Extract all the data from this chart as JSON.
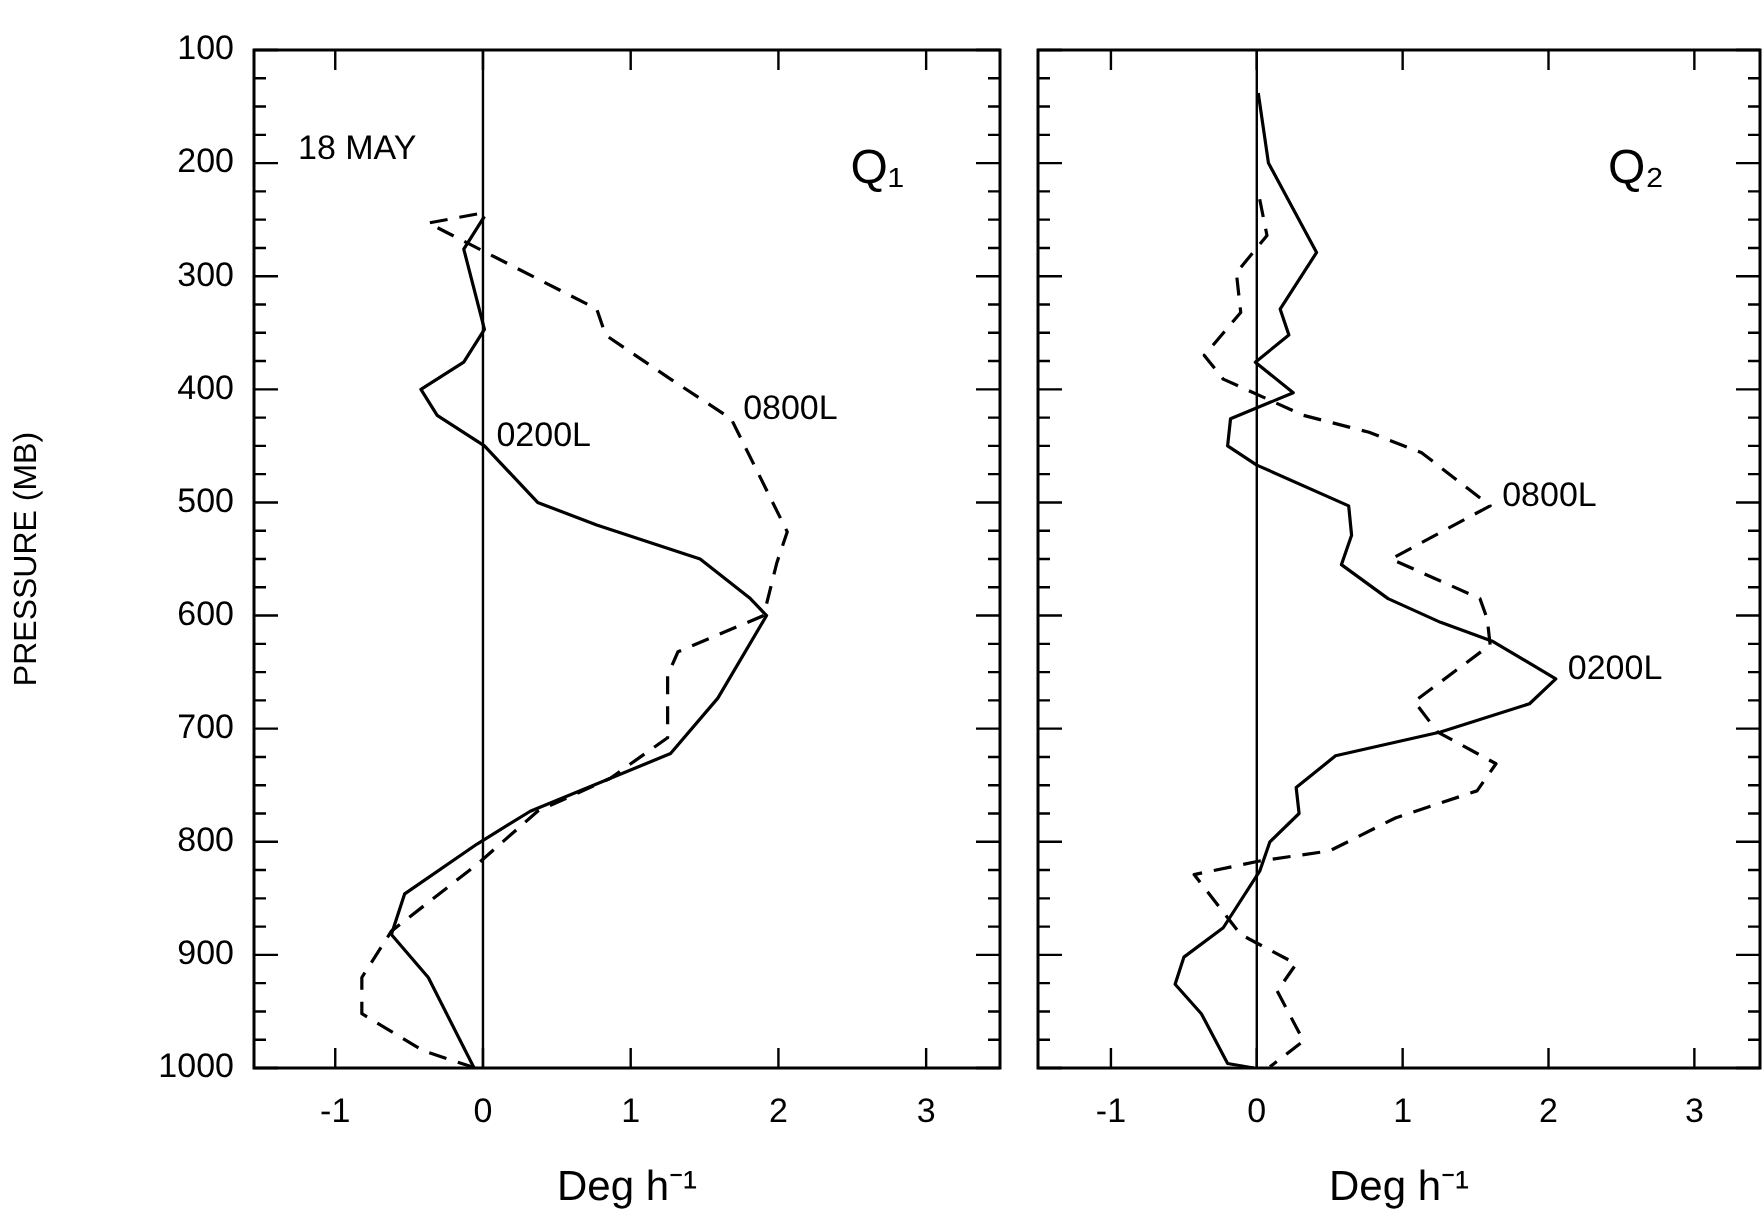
{
  "chart_data": [
    {
      "type": "line",
      "title": "Q₁",
      "xlabel": "Deg h⁻¹",
      "ylabel": "PRESSURE (MB)",
      "xlim": [
        -1.55,
        3.5
      ],
      "xticks": [
        -1,
        0,
        1,
        2,
        3
      ],
      "ylim": [
        1000,
        100
      ],
      "yticks": [
        100,
        {
          "value": 125,
          "label": null
        },
        {
          "value": 150,
          "label": null
        },
        {
          "value": 175,
          "label": null
        },
        200,
        {
          "value": 225,
          "label": null
        },
        {
          "value": 250,
          "label": null
        },
        {
          "value": 275,
          "label": null
        },
        300,
        {
          "value": 325,
          "label": null
        },
        {
          "value": 350,
          "label": null
        },
        {
          "value": 375,
          "label": null
        },
        400,
        {
          "value": 425,
          "label": null
        },
        {
          "value": 450,
          "label": null
        },
        {
          "value": 475,
          "label": null
        },
        500,
        {
          "value": 525,
          "label": null
        },
        {
          "value": 550,
          "label": null
        },
        {
          "value": 575,
          "label": null
        },
        600,
        {
          "value": 625,
          "label": null
        },
        {
          "value": 650,
          "label": null
        },
        {
          "value": 675,
          "label": null
        },
        700,
        {
          "value": 725,
          "label": null
        },
        {
          "value": 750,
          "label": null
        },
        {
          "value": 775,
          "label": null
        },
        800,
        {
          "value": 825,
          "label": null
        },
        {
          "value": 850,
          "label": null
        },
        {
          "value": 875,
          "label": null
        },
        900,
        {
          "value": 925,
          "label": null
        },
        {
          "value": 950,
          "label": null
        },
        {
          "value": 975,
          "label": null
        },
        1000
      ],
      "grid": false,
      "series": [
        {
          "color": "#000000",
          "line_style": "solid",
          "x": [
            0.01,
            -0.13,
            0.01,
            -0.13,
            -0.42,
            -0.31,
            0.01,
            0.37,
            0.77,
            1.47,
            1.81,
            1.92,
            1.59,
            1.27,
            0.32,
            -0.04,
            -0.53,
            -0.62,
            -0.37,
            -0.06
          ],
          "values": [
            247,
            276,
            347,
            376,
            400,
            423,
            450,
            500,
            520,
            550,
            585,
            600,
            673,
            722,
            773,
            802,
            846,
            882,
            920,
            1000
          ]
        },
        {
          "color": "#000000",
          "line_style": "dashed",
          "x": [
            -0.04,
            -0.37,
            0.77,
            0.83,
            1.27,
            1.68,
            2.06,
            1.99,
            1.9,
            1.32,
            1.25,
            1.25,
            0.86,
            0.37,
            -0.04,
            -0.62,
            -0.82,
            -0.82,
            -0.4,
            -0.05
          ],
          "values": [
            245,
            253,
            329,
            352,
            391,
            426,
            526,
            553,
            600,
            632,
            653,
            708,
            744,
            773,
            820,
            879,
            920,
            952,
            985,
            1000
          ]
        }
      ],
      "ref_lines": [
        {
          "axis": "x",
          "value": 0
        }
      ],
      "annotations": [
        "18 MAY",
        {
          "text": "0200L",
          "x": 0.01,
          "y": 450
        },
        {
          "text": "0800L",
          "x": 1.68,
          "y": 426
        }
      ]
    },
    {
      "type": "line",
      "title": "Q₂",
      "xlabel": "Deg h⁻¹",
      "xlim": [
        -1.5,
        3.45
      ],
      "xticks": [
        -1,
        0,
        1,
        2,
        3
      ],
      "ylim": [
        1000,
        100
      ],
      "tick_labels": "x",
      "yticks": [
        100,
        {
          "value": 125,
          "label": null
        },
        {
          "value": 150,
          "label": null
        },
        {
          "value": 175,
          "label": null
        },
        200,
        {
          "value": 225,
          "label": null
        },
        {
          "value": 250,
          "label": null
        },
        {
          "value": 275,
          "label": null
        },
        300,
        {
          "value": 325,
          "label": null
        },
        {
          "value": 350,
          "label": null
        },
        {
          "value": 375,
          "label": null
        },
        400,
        {
          "value": 425,
          "label": null
        },
        {
          "value": 450,
          "label": null
        },
        {
          "value": 475,
          "label": null
        },
        500,
        {
          "value": 525,
          "label": null
        },
        {
          "value": 550,
          "label": null
        },
        {
          "value": 575,
          "label": null
        },
        600,
        {
          "value": 625,
          "label": null
        },
        {
          "value": 650,
          "label": null
        },
        {
          "value": 675,
          "label": null
        },
        700,
        {
          "value": 725,
          "label": null
        },
        {
          "value": 750,
          "label": null
        },
        {
          "value": 775,
          "label": null
        },
        800,
        {
          "value": 825,
          "label": null
        },
        {
          "value": 850,
          "label": null
        },
        {
          "value": 875,
          "label": null
        },
        900,
        {
          "value": 925,
          "label": null
        },
        {
          "value": 950,
          "label": null
        },
        {
          "value": 975,
          "label": null
        },
        1000
      ],
      "grid": false,
      "series": [
        {
          "color": "#000000",
          "line_style": "solid",
          "x": [
            0.01,
            0.08,
            0.41,
            0.16,
            0.22,
            -0.01,
            0.25,
            -0.18,
            -0.2,
            0,
            0.63,
            0.65,
            0.58,
            0.9,
            1.26,
            1.62,
            2.05,
            1.87,
            1.26,
            0.54,
            0.27,
            0.29,
            0.09,
            0.02,
            -0.23,
            -0.5,
            -0.56,
            -0.38,
            -0.2,
            -0.02
          ],
          "values": [
            138,
            200,
            279,
            329,
            352,
            376,
            403,
            426,
            450,
            467,
            503,
            529,
            555,
            585,
            606,
            623,
            656,
            678,
            703,
            724,
            752,
            775,
            800,
            826,
            876,
            902,
            926,
            952,
            996,
            1000
          ]
        },
        {
          "color": "#000000",
          "line_style": "dashed",
          "x": [
            0.02,
            0.07,
            -0.14,
            -0.11,
            -0.36,
            -0.23,
            0.32,
            0.77,
            1.13,
            1.6,
            0.92,
            1.53,
            1.58,
            1.6,
            1.08,
            1.24,
            1.64,
            1.51,
            0.95,
            0.5,
            0.02,
            -0.43,
            -0.11,
            0.27,
            0.14,
            0.32,
            0.09
          ],
          "values": [
            232,
            264,
            297,
            332,
            370,
            391,
            423,
            438,
            456,
            503,
            550,
            585,
            603,
            626,
            676,
            703,
            731,
            755,
            779,
            808,
            817,
            829,
            882,
            908,
            932,
            976,
            999
          ]
        }
      ],
      "ref_lines": [
        {
          "axis": "x",
          "value": 0
        }
      ],
      "annotations": [
        {
          "text": "0800L",
          "x": 1.6,
          "y": 503
        },
        {
          "text": "0200L",
          "x": 2.05,
          "y": 656
        }
      ]
    }
  ]
}
